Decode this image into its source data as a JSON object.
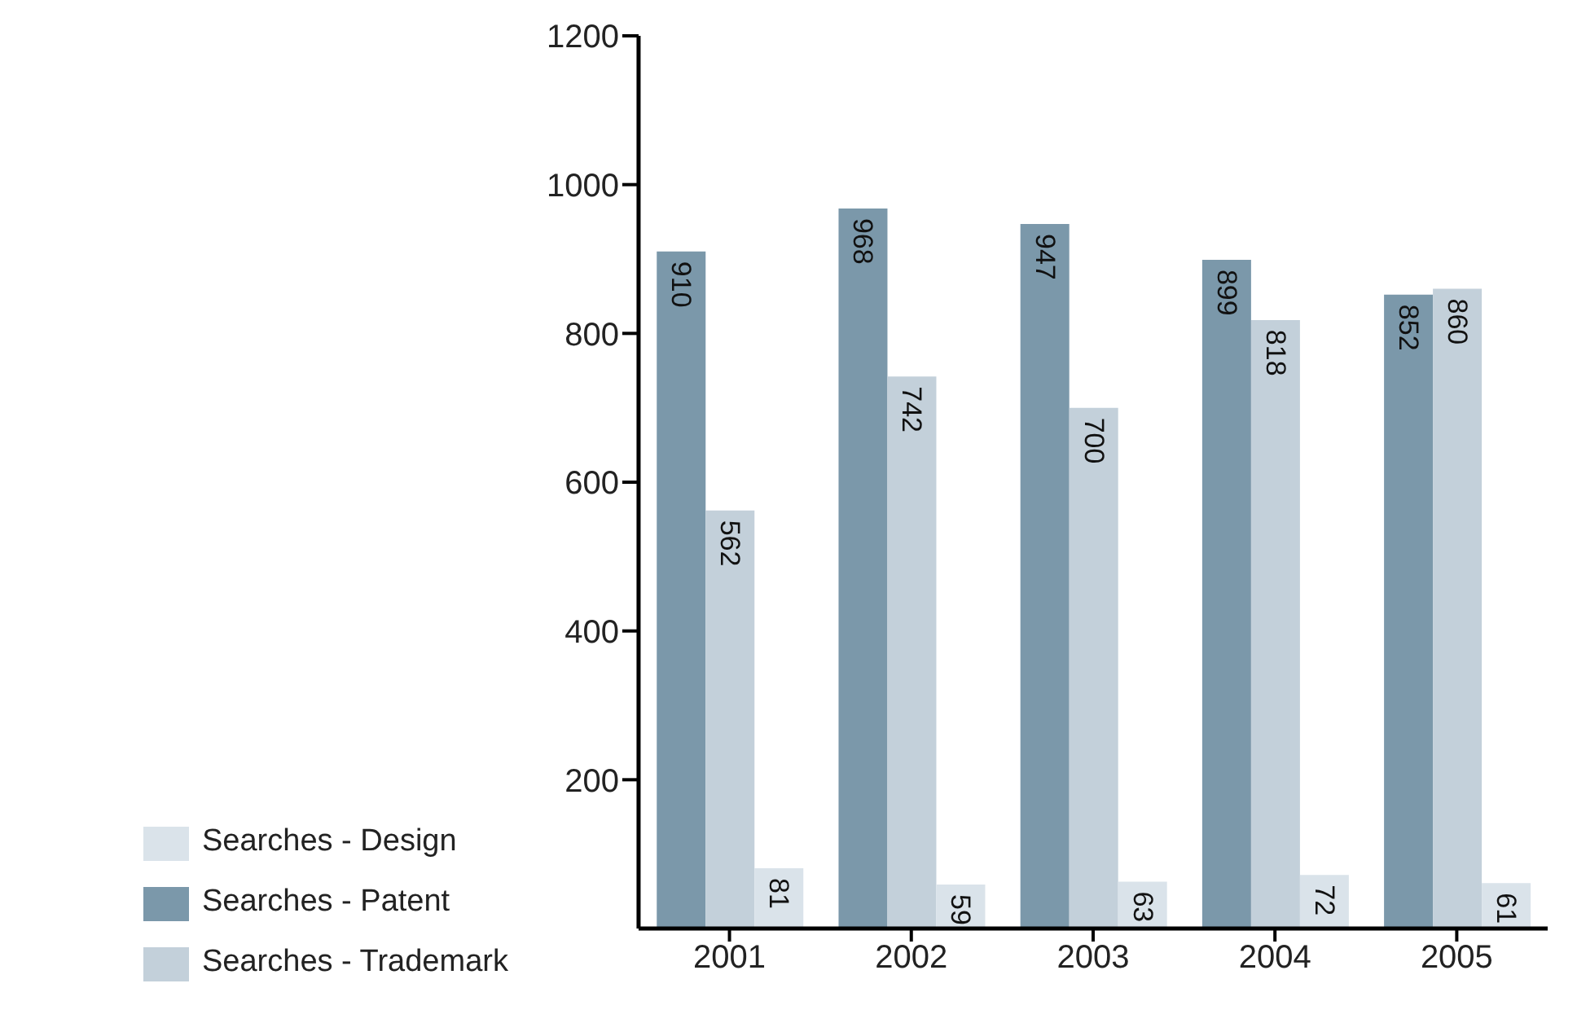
{
  "chart_data": {
    "type": "bar",
    "categories": [
      "2001",
      "2002",
      "2003",
      "2004",
      "2005"
    ],
    "series": [
      {
        "name": "Searches - Patent",
        "color": "#7b98aa",
        "values": [
          910,
          968,
          947,
          899,
          852
        ]
      },
      {
        "name": "Searches - Trademark",
        "color": "#c3d0da",
        "values": [
          562,
          742,
          700,
          818,
          860
        ]
      },
      {
        "name": "Searches - Design",
        "color": "#dae3ea",
        "values": [
          81,
          59,
          63,
          72,
          61
        ]
      }
    ],
    "ylim": [
      0,
      1200
    ],
    "yticks": [
      200,
      400,
      600,
      800,
      1000,
      1200
    ],
    "grid": false,
    "legend": "bottom left",
    "data_labels": true
  }
}
